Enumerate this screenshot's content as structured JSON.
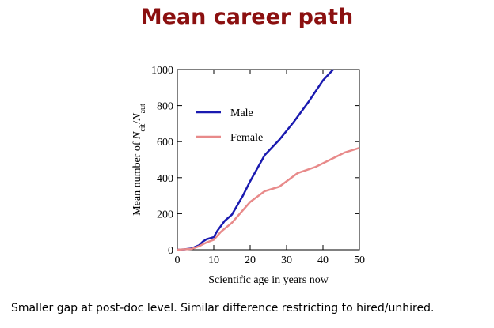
{
  "title": "Mean career path",
  "caption": "Smaller gap at post-doc level. Similar difference restricting to hired/unhired.",
  "chart_data": {
    "type": "line",
    "xlabel": "Scientific age in years now",
    "ylabel_parts": [
      "Mean number of ",
      "N",
      "cit",
      "/",
      "N",
      "aut"
    ],
    "xlim": [
      0,
      50
    ],
    "xticks": [
      0,
      10,
      20,
      30,
      40,
      50
    ],
    "ylim": [
      0,
      1000
    ],
    "yticks": [
      0,
      200,
      400,
      600,
      800,
      1000
    ],
    "legend": "upper left",
    "series": [
      {
        "name": "Male",
        "color": "#1a1ab0",
        "x": [
          0,
          2,
          4,
          6,
          7,
          8,
          10,
          11,
          13,
          15,
          18,
          20,
          24,
          28,
          32,
          36,
          40,
          42.8
        ],
        "values": [
          0,
          2,
          8,
          25,
          45,
          58,
          70,
          105,
          160,
          195,
          300,
          380,
          525,
          610,
          710,
          820,
          940,
          1000
        ]
      },
      {
        "name": "Female",
        "color": "#e88a8a",
        "x": [
          0,
          4,
          6,
          8,
          10,
          12,
          15,
          20,
          24,
          28,
          33,
          38,
          42,
          46,
          50
        ],
        "values": [
          0,
          5,
          20,
          40,
          55,
          100,
          150,
          265,
          325,
          350,
          425,
          460,
          500,
          540,
          565
        ]
      }
    ]
  }
}
